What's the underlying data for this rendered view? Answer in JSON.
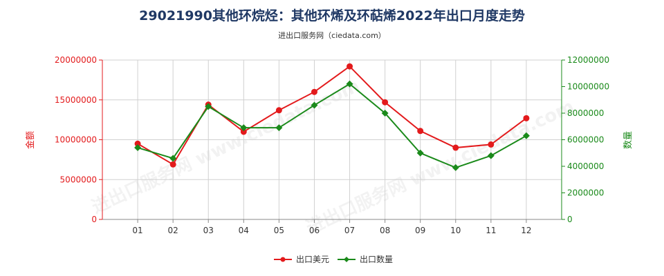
{
  "chart_data": {
    "type": "line",
    "title": "29021990其他环烷烃：其他环烯及环萜烯2022年出口月度走势",
    "subtitle": "进出口服务网（ciedata.com）",
    "watermark": "进出口服务网 www.ciedata.com",
    "categories": [
      "01",
      "02",
      "03",
      "04",
      "05",
      "06",
      "07",
      "08",
      "09",
      "10",
      "11",
      "12"
    ],
    "y_left": {
      "label": "金额",
      "range": [
        0,
        20000000
      ],
      "ticks": [
        0,
        5000000,
        10000000,
        15000000,
        20000000
      ],
      "tick_labels": [
        "0",
        "5000000",
        "10000000",
        "15000000",
        "20000000"
      ],
      "color": "#e31a1c"
    },
    "y_right": {
      "label": "数量",
      "range": [
        0,
        12000000
      ],
      "ticks": [
        0,
        2000000,
        4000000,
        6000000,
        8000000,
        10000000,
        12000000
      ],
      "tick_labels": [
        "0",
        "2000000",
        "4000000",
        "6000000",
        "8000000",
        "10000000",
        "12000000"
      ],
      "color": "#1a8a1a"
    },
    "series": [
      {
        "name": "出口美元",
        "axis": "left",
        "color": "#e31a1c",
        "marker": "circle",
        "values": [
          9500000,
          6900000,
          14400000,
          11000000,
          13700000,
          16000000,
          19200000,
          14700000,
          11100000,
          9000000,
          9400000,
          12700000
        ]
      },
      {
        "name": "出口数量",
        "axis": "right",
        "color": "#1a8a1a",
        "marker": "diamond",
        "values": [
          5400000,
          4600000,
          8500000,
          6900000,
          6900000,
          8600000,
          10200000,
          8000000,
          5000000,
          3900000,
          4800000,
          6300000
        ]
      }
    ],
    "grid": true,
    "legend_position": "bottom-center"
  }
}
